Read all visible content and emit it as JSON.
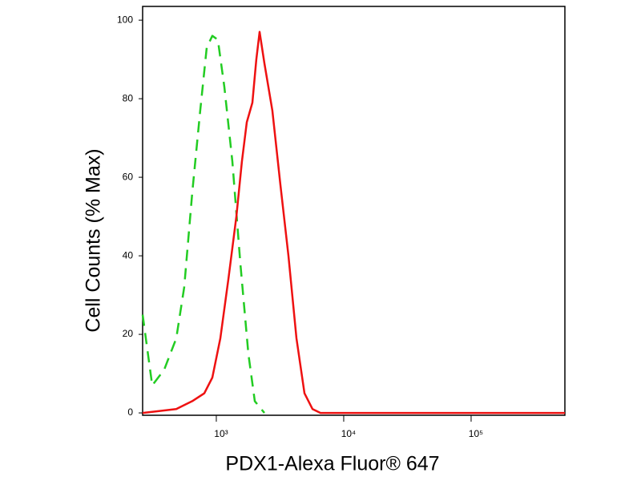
{
  "chart_data": {
    "type": "line",
    "x_label": "PDX1-Alexa Fluor® 647",
    "y_label": "Cell Counts (% Max)",
    "x_log": true,
    "xlim": [
      264,
      544500
    ],
    "ylim": [
      -0.6,
      103.5
    ],
    "xticks": [
      {
        "value": 1000,
        "label": "10³"
      },
      {
        "value": 10000,
        "label": "10⁴"
      },
      {
        "value": 100000,
        "label": "10⁵"
      }
    ],
    "yticks": [
      0,
      20,
      40,
      60,
      80,
      100
    ],
    "series": [
      {
        "color": "#22cc22",
        "dash": true,
        "x": [
          264,
          314,
          390,
          485,
          560,
          647,
          748,
          841,
          931,
          1029,
          1156,
          1336,
          1545,
          1786,
          2005,
          2384
        ],
        "values": [
          25,
          7,
          11,
          19,
          32,
          56,
          77,
          93,
          96,
          95,
          83,
          64,
          38,
          15,
          3,
          0
        ]
      },
      {
        "color": "#ee1111",
        "dash": false,
        "x": [
          264,
          485,
          647,
          805,
          931,
          1075,
          1243,
          1437,
          1589,
          1734,
          1920,
          2062,
          2188,
          2384,
          2754,
          3186,
          3683,
          4258,
          4922,
          5689,
          6577,
          544500
        ],
        "values": [
          0,
          1,
          3,
          5,
          9,
          19,
          34,
          50,
          64,
          74,
          79,
          90,
          97,
          89,
          77,
          58,
          40,
          19,
          5,
          1,
          0,
          0
        ]
      }
    ]
  }
}
